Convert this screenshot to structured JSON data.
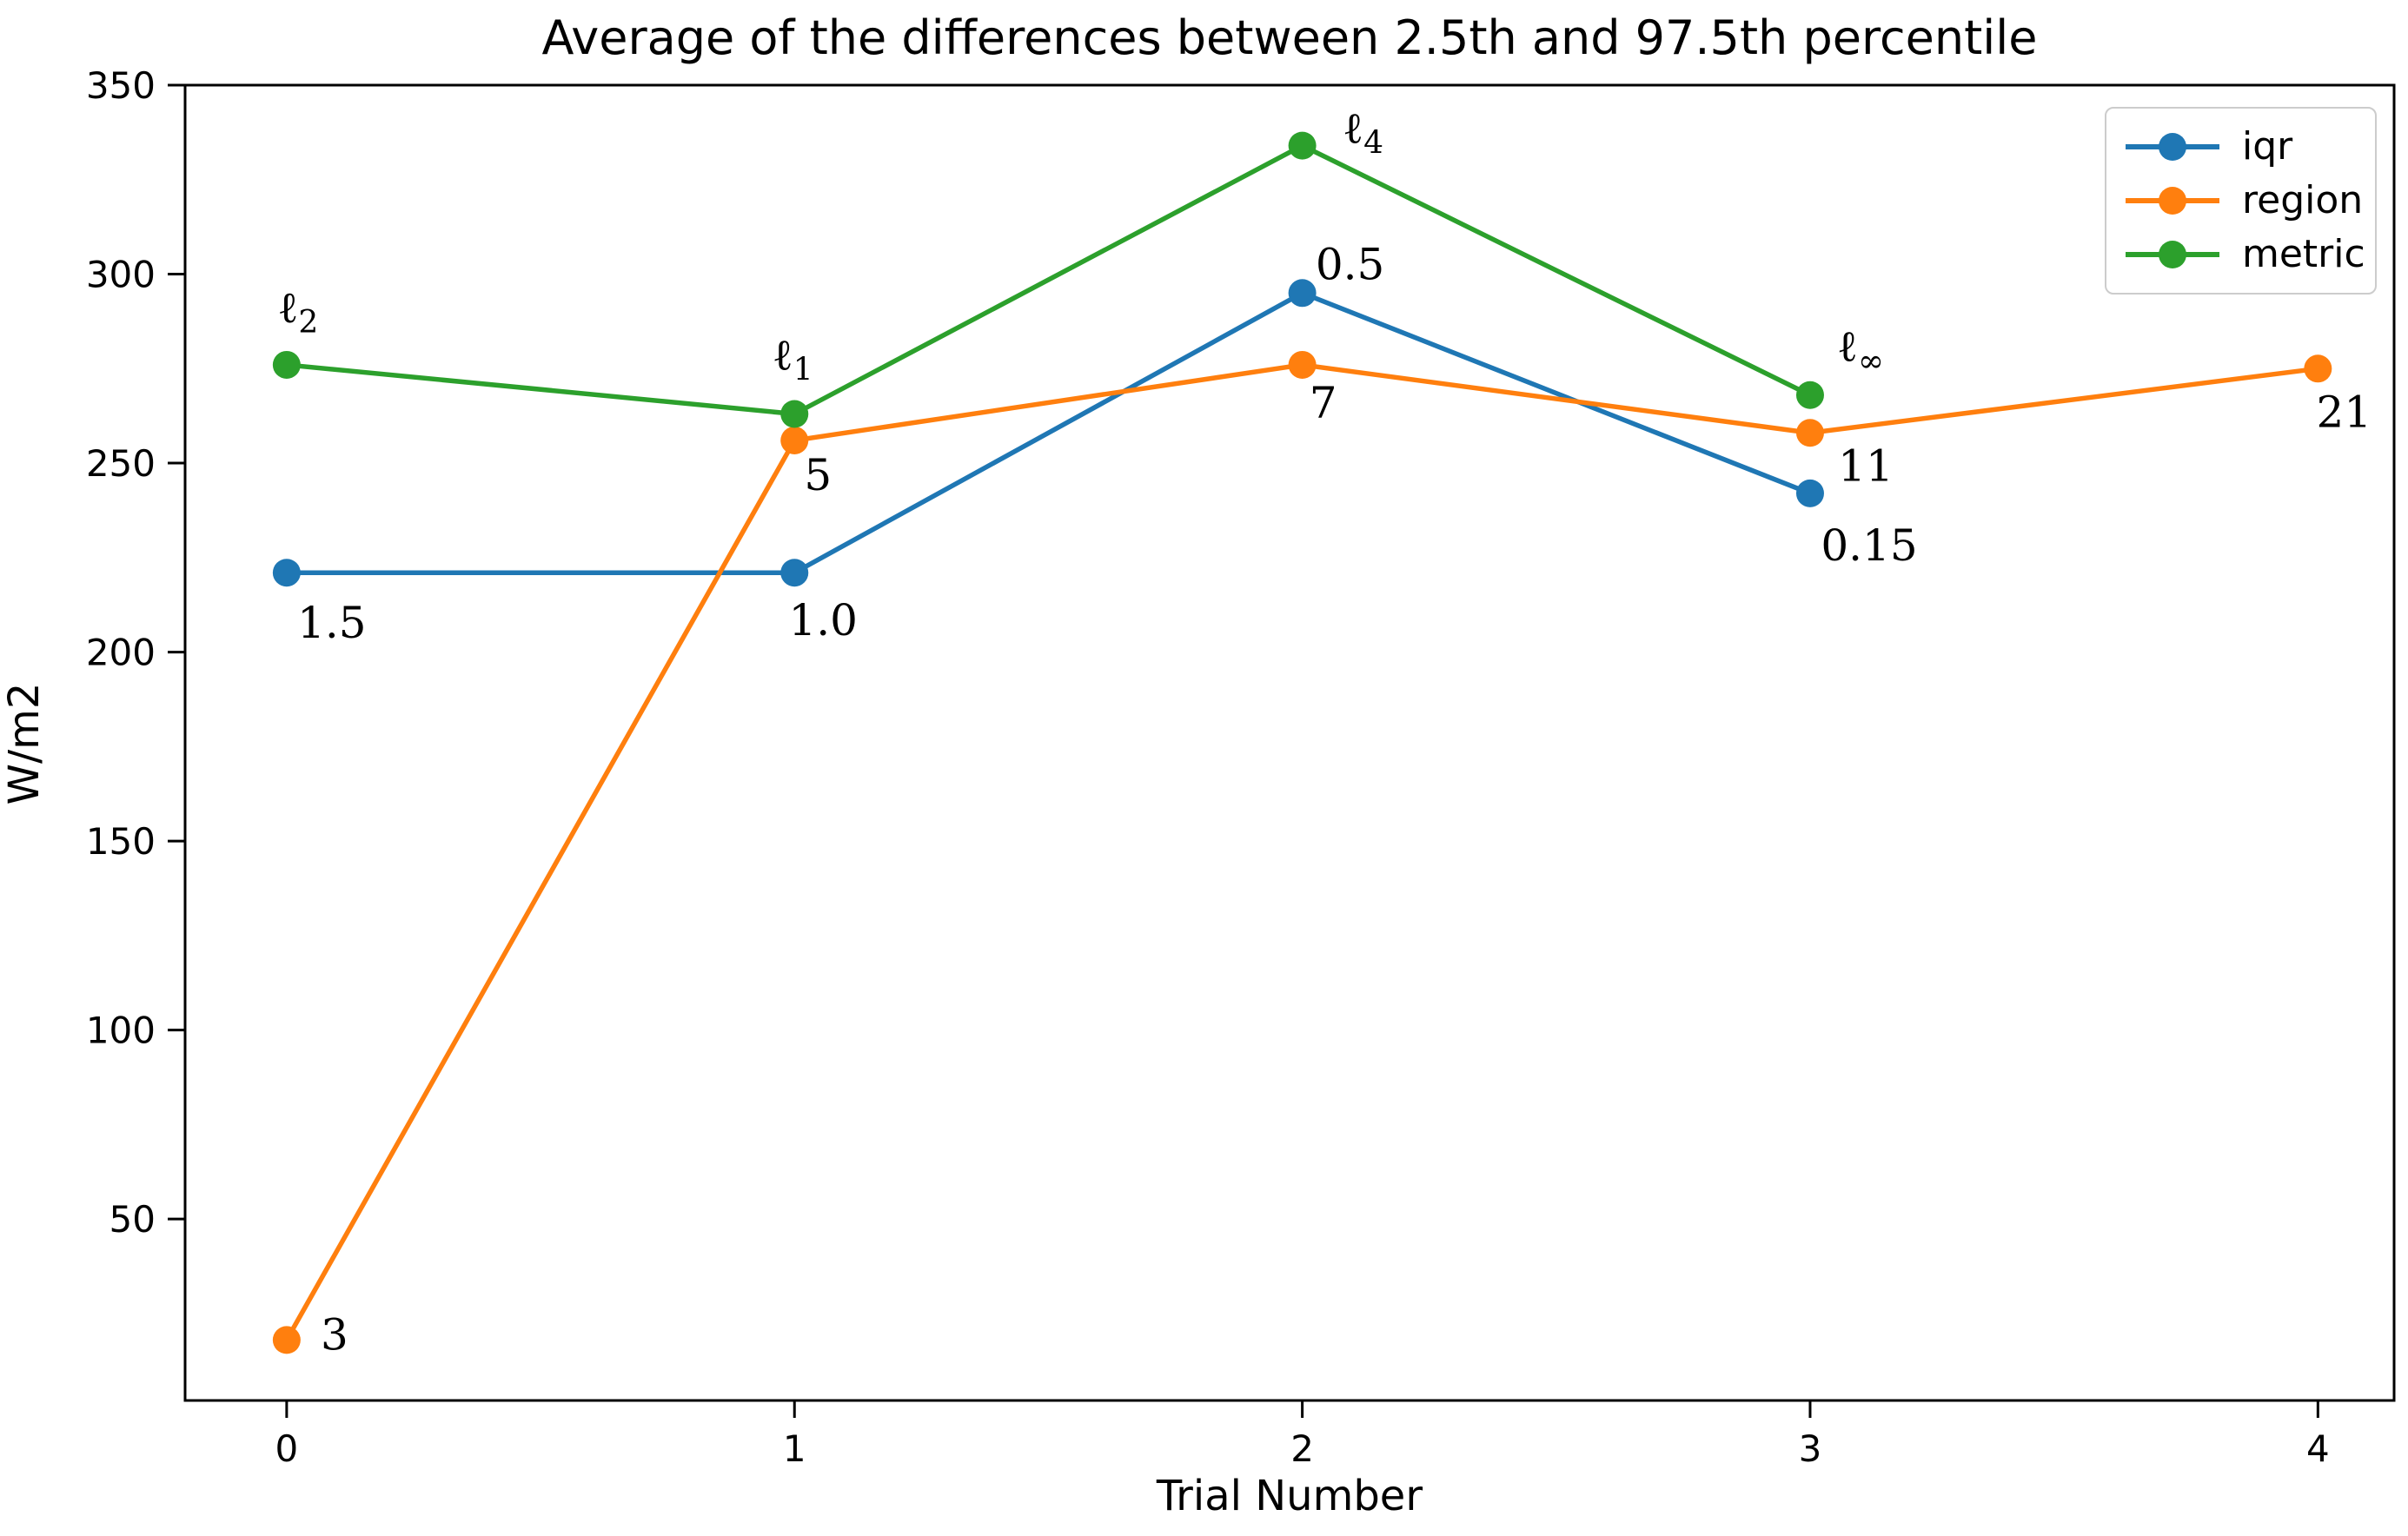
{
  "chart_data": {
    "type": "line",
    "title": "Average of the differences between 2.5th and 97.5th percentile",
    "xlabel": "Trial Number",
    "ylabel": "W/m2",
    "x_ticks": [
      "0",
      "1",
      "2",
      "3",
      "4"
    ],
    "y_ticks": [
      50,
      100,
      150,
      200,
      250,
      300,
      350
    ],
    "xlim": [
      -0.2,
      4.15
    ],
    "ylim": [
      2,
      350
    ],
    "grid": false,
    "legend_position": "upper right",
    "legend_entries": [
      "iqr",
      "region",
      "metric"
    ],
    "series": [
      {
        "name": "iqr",
        "color": "#1f77b4",
        "x": [
          0,
          1,
          2,
          3
        ],
        "values": [
          221,
          221,
          295,
          242
        ],
        "point_labels": [
          "1.5",
          "1.0",
          "0.5",
          "0.15"
        ],
        "annotations": [
          {
            "text": "1.5",
            "sub": "",
            "dx": 52,
            "dy": 58
          },
          {
            "text": "1.0",
            "sub": "",
            "dx": 33,
            "dy": 55
          },
          {
            "text": "0.5",
            "sub": "",
            "dx": 55,
            "dy": -33
          },
          {
            "text": "0.15",
            "sub": "",
            "dx": 68,
            "dy": 60
          }
        ]
      },
      {
        "name": "region",
        "color": "#ff7f0e",
        "x": [
          0,
          1,
          2,
          3,
          4
        ],
        "values": [
          18,
          256,
          276,
          258,
          275
        ],
        "point_labels": [
          "3",
          "5",
          "7",
          "11",
          "21"
        ],
        "annotations": [
          {
            "text": "3",
            "sub": "",
            "dx": 55,
            "dy": -6
          },
          {
            "text": "5",
            "sub": "",
            "dx": 27,
            "dy": 40
          },
          {
            "text": "7",
            "sub": "",
            "dx": 24,
            "dy": 44
          },
          {
            "text": "11",
            "sub": "",
            "dx": 64,
            "dy": 38
          },
          {
            "text": "21",
            "sub": "",
            "dx": 30,
            "dy": 50
          }
        ]
      },
      {
        "name": "metric",
        "color": "#2ca02c",
        "x": [
          0,
          1,
          2,
          3
        ],
        "values": [
          276,
          263,
          334,
          268
        ],
        "point_labels": [
          "ℓ2",
          "ℓ1",
          "ℓ4",
          "ℓ∞"
        ],
        "annotations": [
          {
            "text": "ℓ",
            "sub": "2",
            "dx": 13,
            "dy": -66
          },
          {
            "text": "ℓ",
            "sub": "1",
            "dx": -2,
            "dy": -68
          },
          {
            "text": "ℓ",
            "sub": "4",
            "dx": 70,
            "dy": -20
          },
          {
            "text": "ℓ",
            "sub": "∞",
            "dx": 58,
            "dy": -56
          }
        ]
      }
    ]
  },
  "colors": {
    "background": "#ffffff",
    "axis": "#000000",
    "text": "#000000",
    "legend_border": "#cccccc",
    "series_blue": "#1f77b4",
    "series_orange": "#ff7f0e",
    "series_green": "#2ca02c"
  }
}
